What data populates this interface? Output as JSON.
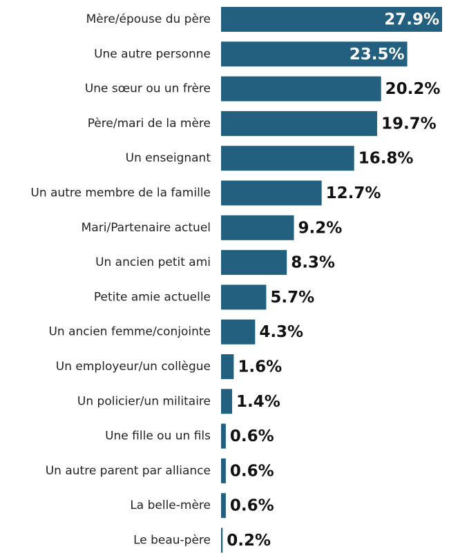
{
  "chart_data": {
    "type": "bar",
    "orientation": "horizontal",
    "color": "#235f7e",
    "categories": [
      "Mère/épouse du père",
      "Une autre personne",
      "Une sœur ou un frère",
      "Père/mari de la mère",
      "Un enseignant",
      "Un autre membre de la famille",
      "Mari/Partenaire actuel",
      "Un ancien petit ami",
      "Petite amie actuelle",
      "Un ancien femme/conjointe",
      "Un employeur/un collègue",
      "Un policier/un militaire",
      "Une fille ou un fils",
      "Un autre parent par alliance",
      "La belle-mère",
      "Le beau-père"
    ],
    "values": [
      27.9,
      23.5,
      20.2,
      19.7,
      16.8,
      12.7,
      9.2,
      8.3,
      5.7,
      4.3,
      1.6,
      1.4,
      0.6,
      0.6,
      0.6,
      0.2
    ],
    "value_labels": [
      "27.9%",
      "23.5%",
      "20.2%",
      "19.7%",
      "16.8%",
      "12.7%",
      "9.2%",
      "8.3%",
      "5.7%",
      "4.3%",
      "1.6%",
      "1.4%",
      "0.6%",
      "0.6%",
      "0.6%",
      "0.2%"
    ]
  }
}
